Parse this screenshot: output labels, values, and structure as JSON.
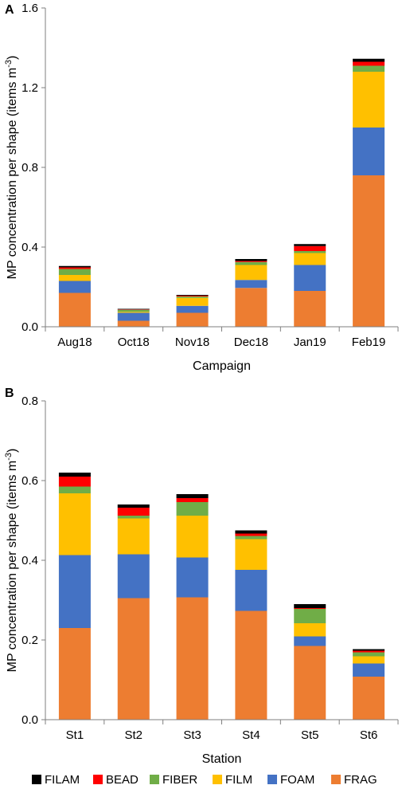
{
  "legend": {
    "placement": "bottom",
    "entries": [
      {
        "name": "FILAM",
        "color": "#000000"
      },
      {
        "name": "BEAD",
        "color": "#FF0000"
      },
      {
        "name": "FIBER",
        "color": "#70AD47"
      },
      {
        "name": "FILM",
        "color": "#FFC000"
      },
      {
        "name": "FOAM",
        "color": "#4472C4"
      },
      {
        "name": "FRAG",
        "color": "#ED7D31"
      }
    ]
  },
  "chart_data": [
    {
      "panel": "A",
      "type": "bar",
      "stacked": true,
      "xlabel": "Campaign",
      "ylabel": "MP concentration per shape (items m",
      "ylabel_sup": "-3",
      "ylabel_close": ")",
      "ylim": [
        0,
        1.6
      ],
      "yticks": [
        "0.0",
        "0.4",
        "0.8",
        "1.2",
        "1.6"
      ],
      "grid": false,
      "categories": [
        "Aug18",
        "Oct18",
        "Nov18",
        "Dec18",
        "Jan19",
        "Feb19"
      ],
      "series": [
        {
          "name": "FRAG",
          "color": "#ED7D31",
          "values": [
            0.17,
            0.03,
            0.07,
            0.195,
            0.18,
            0.76
          ]
        },
        {
          "name": "FOAM",
          "color": "#4472C4",
          "values": [
            0.06,
            0.04,
            0.035,
            0.04,
            0.13,
            0.24
          ]
        },
        {
          "name": "FILM",
          "color": "#FFC000",
          "values": [
            0.03,
            0.005,
            0.04,
            0.075,
            0.06,
            0.28
          ]
        },
        {
          "name": "FIBER",
          "color": "#70AD47",
          "values": [
            0.03,
            0.01,
            0.007,
            0.015,
            0.01,
            0.03
          ]
        },
        {
          "name": "BEAD",
          "color": "#FF0000",
          "values": [
            0.008,
            0.002,
            0.004,
            0.005,
            0.025,
            0.02
          ]
        },
        {
          "name": "FILAM",
          "color": "#000000",
          "values": [
            0.007,
            0.003,
            0.004,
            0.01,
            0.01,
            0.015
          ]
        }
      ]
    },
    {
      "panel": "B",
      "type": "bar",
      "stacked": true,
      "xlabel": "Station",
      "ylabel": "MP concentration per shape (items m",
      "ylabel_sup": "-3",
      "ylabel_close": ")",
      "ylim": [
        0,
        0.8
      ],
      "yticks": [
        "0.0",
        "0.2",
        "0.4",
        "0.6",
        "0.8"
      ],
      "grid": false,
      "categories": [
        "St1",
        "St2",
        "St3",
        "St4",
        "St5",
        "St6"
      ],
      "series": [
        {
          "name": "FRAG",
          "color": "#ED7D31",
          "values": [
            0.23,
            0.305,
            0.307,
            0.273,
            0.185,
            0.108
          ]
        },
        {
          "name": "FOAM",
          "color": "#4472C4",
          "values": [
            0.183,
            0.11,
            0.1,
            0.103,
            0.024,
            0.033
          ]
        },
        {
          "name": "FILM",
          "color": "#FFC000",
          "values": [
            0.155,
            0.09,
            0.105,
            0.077,
            0.033,
            0.018
          ]
        },
        {
          "name": "FIBER",
          "color": "#70AD47",
          "values": [
            0.017,
            0.007,
            0.034,
            0.008,
            0.036,
            0.01
          ]
        },
        {
          "name": "BEAD",
          "color": "#FF0000",
          "values": [
            0.025,
            0.02,
            0.01,
            0.006,
            0.002,
            0.004
          ]
        },
        {
          "name": "FILAM",
          "color": "#000000",
          "values": [
            0.01,
            0.008,
            0.01,
            0.008,
            0.01,
            0.004
          ]
        }
      ]
    }
  ]
}
